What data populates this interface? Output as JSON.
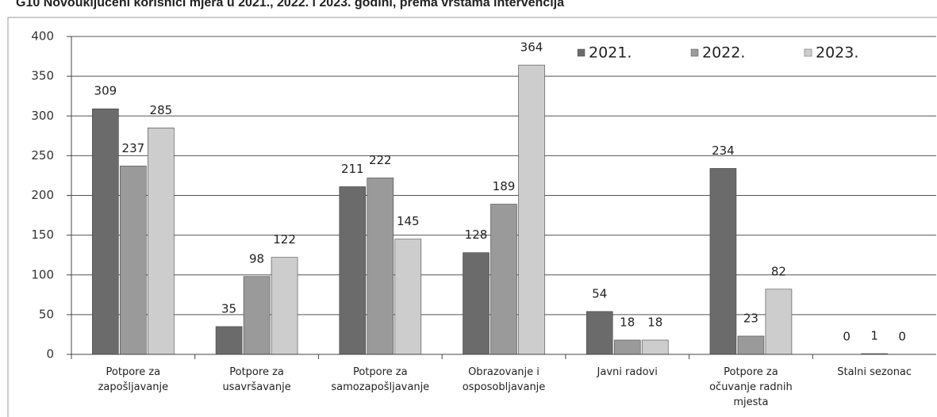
{
  "chart_data": {
    "type": "bar",
    "title": "G10 Novouključeni korisnici mjera u 2021., 2022. i 2023. godini, prema vrstama intervencija",
    "categories": [
      "Potpore za\nzapošljavanje",
      "Potpore za\nusavršavanje",
      "Potpore za\nsamozapošljavanje",
      "Obrazovanje i\nosposobljavanje",
      "Javni radovi",
      "Potpore za\nočuvanje radnih\nmjesta",
      "Stalni sezonac"
    ],
    "series": [
      {
        "name": "2021.",
        "color": "#6b6b6b",
        "values": [
          309,
          35,
          211,
          128,
          54,
          234,
          0
        ]
      },
      {
        "name": "2022.",
        "color": "#9a9a9a",
        "values": [
          237,
          98,
          222,
          189,
          18,
          23,
          1
        ]
      },
      {
        "name": "2023.",
        "color": "#cdcdcd",
        "values": [
          285,
          122,
          145,
          364,
          18,
          82,
          0
        ]
      }
    ],
    "ylim": [
      0,
      400
    ],
    "yticks": [
      0,
      50,
      100,
      150,
      200,
      250,
      300,
      350,
      400
    ],
    "grid": true,
    "legend": "top-right"
  }
}
